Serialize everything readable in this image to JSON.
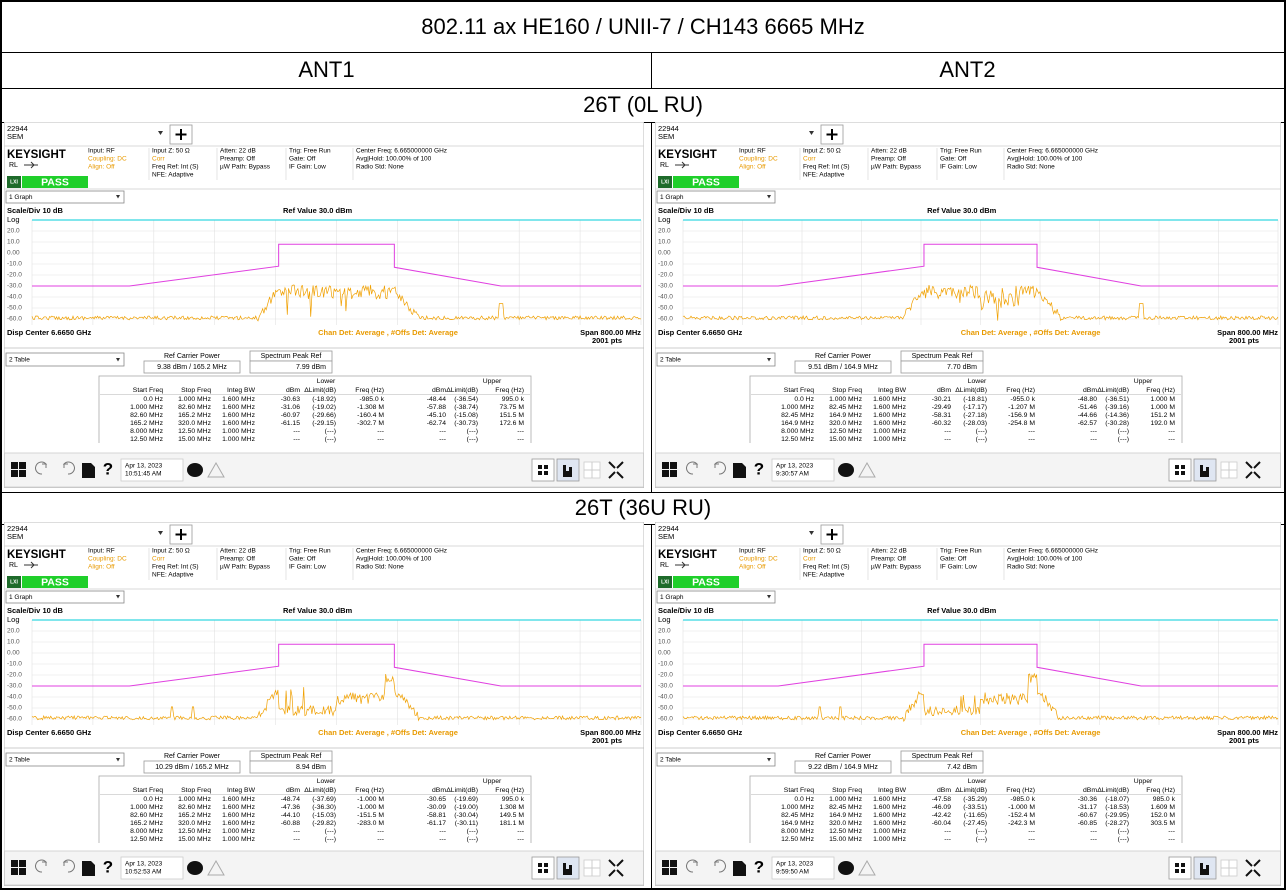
{
  "header": {
    "title": "802.11 ax HE160 / UNII-7 / CH143 6665 MHz"
  },
  "columns": [
    "ANT1",
    "ANT2"
  ],
  "instrument": {
    "app_id": "22944",
    "mode": "SEM",
    "brand": "KEYSIGHT",
    "input": "Input: RF",
    "rl": "RL",
    "coupling": "Coupling: DC",
    "align": "Align: Off",
    "input_z": "Input Z: 50 Ω",
    "corr": "Corr",
    "freq_ref": "Freq Ref: Int (S)",
    "nfe": "NFE: Adaptive",
    "atten": "Atten: 22 dB",
    "preamp": "Preamp: Off",
    "uw_path": "µW Path: Bypass",
    "trig": "Trig: Free Run",
    "gate": "Gate: Off",
    "if_gain": "IF Gain: Low",
    "center_freq": "Center Freq: 6.665000000 GHz",
    "avg_hold": "Avg|Hold: 100.00% of 100",
    "radio_std": "Radio Std: None",
    "lxi": "LXI",
    "status": "PASS",
    "graph_menu": "1 Graph",
    "scale": "Scale/Div 10 dB",
    "ref_value": "Ref Value 30.0 dBm",
    "log": "Log",
    "y_labels": [
      "20.0",
      "10.0",
      "0.00",
      "-10.0",
      "-20.0",
      "-30.0",
      "-40.0",
      "-50.0",
      "-60.0"
    ],
    "disp_center": "Disp Center 6.6650 GHz",
    "detector": "Chan Det: Average , #Offs Det: Average",
    "span": "Span 800.00 MHz",
    "points": "2001 pts",
    "table_menu": "2 Table",
    "carrier_label": "Ref Carrier Power",
    "peak_label": "Spectrum Peak Ref",
    "group_headers": [
      "Lower",
      "Upper"
    ],
    "col_headers": [
      "Start Freq",
      "Stop Freq",
      "Integ BW",
      "dBm",
      "ΔLimit(dB)",
      "Freq (Hz)",
      "dBm",
      "ΔLimit(dB)",
      "Freq (Hz)"
    ],
    "help": "?"
  },
  "sections": [
    {
      "title": "26T (0L RU)",
      "screens": [
        {
          "carrier": "9.38 dBm / 165.2 MHz",
          "peak": "7.99 dBm",
          "date": "Apr 13, 2023",
          "time": "10:51:45 AM",
          "rows": [
            [
              "0.0 Hz",
              "1.000 MHz",
              "1.600 MHz",
              "-30.63",
              "(-18.92)",
              "-985.0 k",
              "-48.44",
              "(-36.54)",
              "995.0 k"
            ],
            [
              "1.000 MHz",
              "82.60 MHz",
              "1.600 MHz",
              "-31.06",
              "(-19.02)",
              "-1.308 M",
              "-57.88",
              "(-38.74)",
              "73.75 M"
            ],
            [
              "82.60 MHz",
              "165.2 MHz",
              "1.600 MHz",
              "-60.97",
              "(-29.66)",
              "-160.4 M",
              "-45.10",
              "(-15.08)",
              "151.5 M"
            ],
            [
              "165.2 MHz",
              "320.0 MHz",
              "1.600 MHz",
              "-61.15",
              "(-29.15)",
              "-302.7 M",
              "-62.74",
              "(-30.73)",
              "172.6 M"
            ],
            [
              "8.000 MHz",
              "12.50 MHz",
              "1.000 MHz",
              "---",
              "(---)",
              "---",
              "---",
              "(---)",
              "---"
            ],
            [
              "12.50 MHz",
              "15.00 MHz",
              "1.000 MHz",
              "---",
              "(---)",
              "---",
              "---",
              "(---)",
              "---"
            ]
          ]
        },
        {
          "carrier": "9.51 dBm / 164.9 MHz",
          "peak": "7.70 dBm",
          "date": "Apr 13, 2023",
          "time": "9:30:57 AM",
          "rows": [
            [
              "0.0 Hz",
              "1.000 MHz",
              "1.600 MHz",
              "-30.21",
              "(-18.81)",
              "-955.0 k",
              "-48.80",
              "(-36.51)",
              "1.000 M"
            ],
            [
              "1.000 MHz",
              "82.45 MHz",
              "1.600 MHz",
              "-29.49",
              "(-17.17)",
              "-1.207 M",
              "-51.46",
              "(-39.16)",
              "1.000 M"
            ],
            [
              "82.45 MHz",
              "164.9 MHz",
              "1.600 MHz",
              "-58.31",
              "(-27.18)",
              "-156.9 M",
              "-44.66",
              "(-14.36)",
              "151.2 M"
            ],
            [
              "164.9 MHz",
              "320.0 MHz",
              "1.600 MHz",
              "-60.32",
              "(-28.03)",
              "-254.8 M",
              "-62.57",
              "(-30.28)",
              "192.0 M"
            ],
            [
              "8.000 MHz",
              "12.50 MHz",
              "1.000 MHz",
              "---",
              "(---)",
              "---",
              "---",
              "(---)",
              "---"
            ],
            [
              "12.50 MHz",
              "15.00 MHz",
              "1.000 MHz",
              "---",
              "(---)",
              "---",
              "---",
              "(---)",
              "---"
            ]
          ]
        }
      ]
    },
    {
      "title": "26T (36U RU)",
      "screens": [
        {
          "carrier": "10.29 dBm / 165.2 MHz",
          "peak": "8.94 dBm",
          "date": "Apr 13, 2023",
          "time": "10:52:53 AM",
          "rows": [
            [
              "0.0 Hz",
              "1.000 MHz",
              "1.600 MHz",
              "-48.74",
              "(-37.69)",
              "-1.000 M",
              "-30.65",
              "(-19.69)",
              "995.0 k"
            ],
            [
              "1.000 MHz",
              "82.60 MHz",
              "1.600 MHz",
              "-47.36",
              "(-36.30)",
              "-1.000 M",
              "-30.09",
              "(-19.00)",
              "1.308 M"
            ],
            [
              "82.60 MHz",
              "165.2 MHz",
              "1.600 MHz",
              "-44.10",
              "(-15.03)",
              "-151.5 M",
              "-58.81",
              "(-30.04)",
              "149.5 M"
            ],
            [
              "165.2 MHz",
              "320.0 MHz",
              "1.600 MHz",
              "-60.88",
              "(-29.82)",
              "-283.0 M",
              "-61.17",
              "(-30.11)",
              "181.1 M"
            ],
            [
              "8.000 MHz",
              "12.50 MHz",
              "1.000 MHz",
              "---",
              "(---)",
              "---",
              "---",
              "(---)",
              "---"
            ],
            [
              "12.50 MHz",
              "15.00 MHz",
              "1.000 MHz",
              "---",
              "(---)",
              "---",
              "---",
              "(---)",
              "---"
            ]
          ]
        },
        {
          "carrier": "9.22 dBm / 164.9 MHz",
          "peak": "7.42 dBm",
          "date": "Apr 13, 2023",
          "time": "9:59:50 AM",
          "rows": [
            [
              "0.0 Hz",
              "1.000 MHz",
              "1.600 MHz",
              "-47.58",
              "(-35.29)",
              "-985.0 k",
              "-30.36",
              "(-18.07)",
              "985.0 k"
            ],
            [
              "1.000 MHz",
              "82.45 MHz",
              "1.600 MHz",
              "-46.09",
              "(-33.51)",
              "-1.000 M",
              "-31.17",
              "(-18.53)",
              "1.609 M"
            ],
            [
              "82.45 MHz",
              "164.9 MHz",
              "1.600 MHz",
              "-42.42",
              "(-11.65)",
              "-152.4 M",
              "-60.67",
              "(-29.95)",
              "152.0 M"
            ],
            [
              "164.9 MHz",
              "320.0 MHz",
              "1.600 MHz",
              "-60.04",
              "(-27.45)",
              "-242.3 M",
              "-60.85",
              "(-28.27)",
              "303.5 M"
            ],
            [
              "8.000 MHz",
              "12.50 MHz",
              "1.000 MHz",
              "---",
              "(---)",
              "---",
              "---",
              "(---)",
              "---"
            ],
            [
              "12.50 MHz",
              "15.00 MHz",
              "1.000 MHz",
              "---",
              "(---)",
              "---",
              "---",
              "(---)",
              "---"
            ]
          ]
        }
      ]
    }
  ]
}
